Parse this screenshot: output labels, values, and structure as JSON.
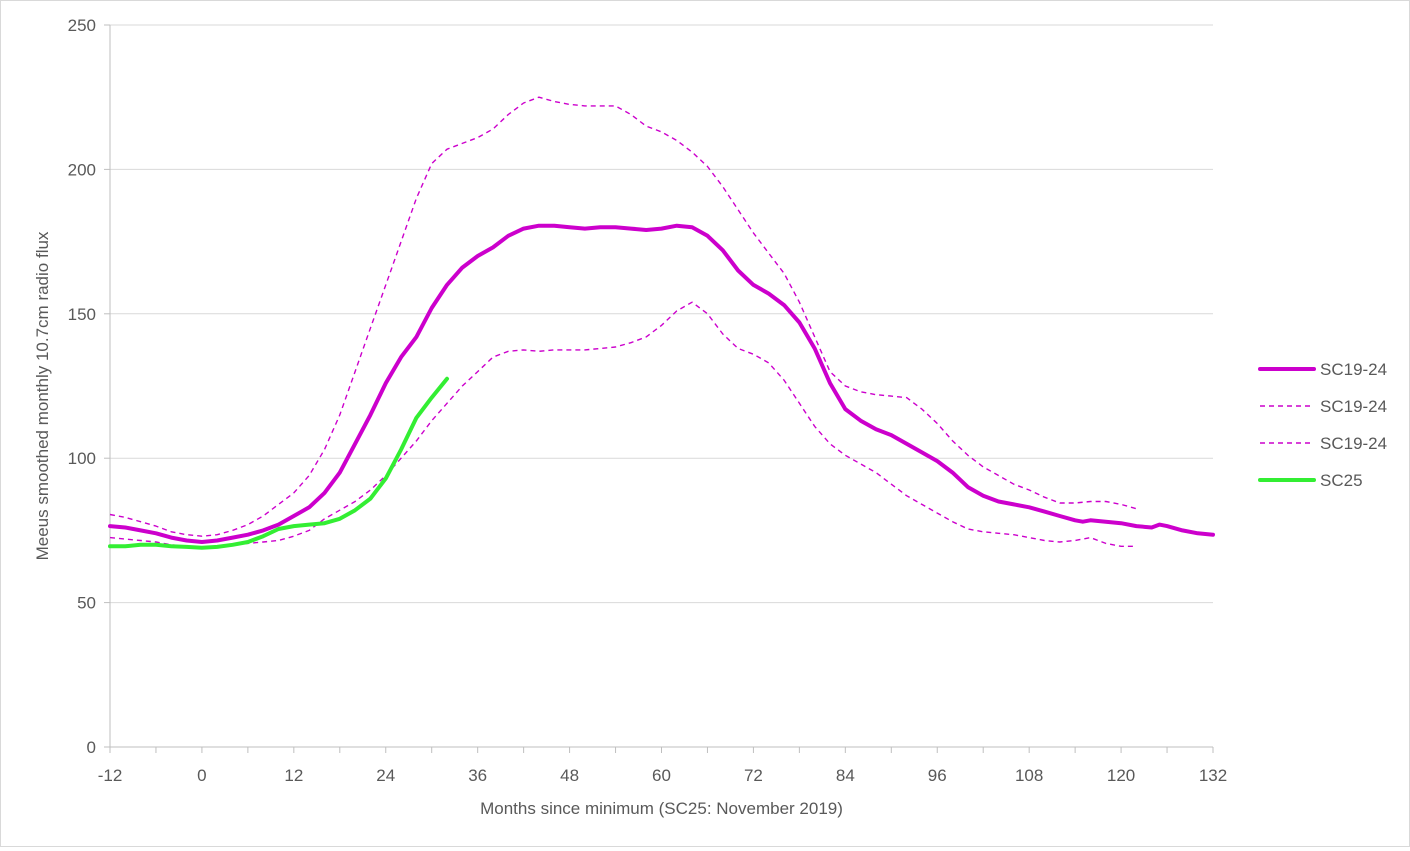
{
  "chart_data": {
    "type": "line",
    "title": "",
    "xlabel": "Months since minimum (SC25: November 2019)",
    "ylabel": "Meeus smoothed monthly 10.7cm radio flux",
    "xlim": [
      -12,
      132
    ],
    "ylim": [
      0,
      250
    ],
    "x_ticks": [
      -12,
      0,
      12,
      24,
      36,
      48,
      60,
      72,
      84,
      96,
      108,
      120,
      132
    ],
    "y_ticks": [
      0,
      50,
      100,
      150,
      200,
      250
    ],
    "grid": "horizontal",
    "legend_position": "right",
    "series": [
      {
        "name": "SC19-24",
        "style": "solid-thick",
        "color": "#cc00cc",
        "points": [
          [
            -12,
            76.5
          ],
          [
            -10,
            76
          ],
          [
            -8,
            75
          ],
          [
            -6,
            74
          ],
          [
            -4,
            72.5
          ],
          [
            -2,
            71.5
          ],
          [
            0,
            71
          ],
          [
            2,
            71.5
          ],
          [
            4,
            72.5
          ],
          [
            6,
            73.5
          ],
          [
            8,
            75
          ],
          [
            10,
            77
          ],
          [
            12,
            80
          ],
          [
            14,
            83
          ],
          [
            16,
            88
          ],
          [
            18,
            95
          ],
          [
            20,
            105
          ],
          [
            22,
            115
          ],
          [
            24,
            126
          ],
          [
            26,
            135
          ],
          [
            28,
            142
          ],
          [
            30,
            152
          ],
          [
            32,
            160
          ],
          [
            34,
            166
          ],
          [
            36,
            170
          ],
          [
            38,
            173
          ],
          [
            40,
            177
          ],
          [
            42,
            179.5
          ],
          [
            44,
            180.5
          ],
          [
            46,
            180.5
          ],
          [
            48,
            180
          ],
          [
            50,
            179.5
          ],
          [
            52,
            180
          ],
          [
            54,
            180
          ],
          [
            56,
            179.5
          ],
          [
            58,
            179
          ],
          [
            60,
            179.5
          ],
          [
            62,
            180.5
          ],
          [
            64,
            180
          ],
          [
            66,
            177
          ],
          [
            68,
            172
          ],
          [
            70,
            165
          ],
          [
            72,
            160
          ],
          [
            74,
            157
          ],
          [
            76,
            153
          ],
          [
            78,
            147
          ],
          [
            80,
            138
          ],
          [
            82,
            126
          ],
          [
            84,
            117
          ],
          [
            86,
            113
          ],
          [
            88,
            110
          ],
          [
            90,
            108
          ],
          [
            92,
            105
          ],
          [
            94,
            102
          ],
          [
            96,
            99
          ],
          [
            98,
            95
          ],
          [
            100,
            90
          ],
          [
            102,
            87
          ],
          [
            104,
            85
          ],
          [
            106,
            84
          ],
          [
            108,
            83
          ],
          [
            110,
            81.5
          ],
          [
            112,
            80
          ],
          [
            114,
            78.5
          ],
          [
            115,
            78
          ],
          [
            116,
            78.5
          ],
          [
            118,
            78
          ],
          [
            120,
            77.5
          ],
          [
            122,
            76.5
          ],
          [
            124,
            76
          ],
          [
            125,
            77
          ],
          [
            126,
            76.5
          ],
          [
            128,
            75
          ],
          [
            130,
            74
          ],
          [
            132,
            73.5
          ]
        ]
      },
      {
        "name": "SC19-24",
        "style": "dashed",
        "color": "#cc00cc",
        "points": [
          [
            -12,
            80.5
          ],
          [
            -10,
            79.5
          ],
          [
            -8,
            78
          ],
          [
            -6,
            76.5
          ],
          [
            -4,
            74.5
          ],
          [
            -2,
            73.5
          ],
          [
            0,
            73
          ],
          [
            2,
            73.5
          ],
          [
            4,
            75
          ],
          [
            6,
            77
          ],
          [
            8,
            80
          ],
          [
            10,
            84
          ],
          [
            12,
            88
          ],
          [
            14,
            94
          ],
          [
            16,
            103
          ],
          [
            18,
            115
          ],
          [
            20,
            130
          ],
          [
            22,
            145
          ],
          [
            24,
            160
          ],
          [
            26,
            175
          ],
          [
            28,
            190
          ],
          [
            30,
            202
          ],
          [
            32,
            207
          ],
          [
            34,
            209
          ],
          [
            36,
            211
          ],
          [
            38,
            214
          ],
          [
            40,
            219
          ],
          [
            42,
            223
          ],
          [
            44,
            225
          ],
          [
            46,
            223.5
          ],
          [
            48,
            222.5
          ],
          [
            50,
            222
          ],
          [
            52,
            222
          ],
          [
            54,
            222
          ],
          [
            56,
            219
          ],
          [
            58,
            215
          ],
          [
            60,
            213
          ],
          [
            62,
            210
          ],
          [
            64,
            206
          ],
          [
            66,
            201
          ],
          [
            68,
            194
          ],
          [
            70,
            186
          ],
          [
            72,
            178
          ],
          [
            74,
            171
          ],
          [
            76,
            164
          ],
          [
            78,
            154
          ],
          [
            80,
            142
          ],
          [
            82,
            130
          ],
          [
            84,
            125
          ],
          [
            86,
            123
          ],
          [
            88,
            122
          ],
          [
            90,
            121.5
          ],
          [
            92,
            121
          ],
          [
            94,
            117
          ],
          [
            96,
            112
          ],
          [
            98,
            106
          ],
          [
            100,
            101
          ],
          [
            102,
            97
          ],
          [
            104,
            94
          ],
          [
            106,
            91
          ],
          [
            108,
            89
          ],
          [
            110,
            86.5
          ],
          [
            112,
            84.5
          ],
          [
            114,
            84.5
          ],
          [
            116,
            85
          ],
          [
            118,
            85
          ],
          [
            120,
            84
          ],
          [
            122,
            82.5
          ]
        ]
      },
      {
        "name": "SC19-24",
        "style": "dashed",
        "color": "#cc00cc",
        "points": [
          [
            -12,
            72.5
          ],
          [
            -10,
            72
          ],
          [
            -8,
            71.5
          ],
          [
            -6,
            71
          ],
          [
            -4,
            70
          ],
          [
            -2,
            69.5
          ],
          [
            0,
            69
          ],
          [
            2,
            69.5
          ],
          [
            4,
            70
          ],
          [
            6,
            70.5
          ],
          [
            8,
            71
          ],
          [
            10,
            71.5
          ],
          [
            12,
            73
          ],
          [
            14,
            75
          ],
          [
            16,
            79
          ],
          [
            18,
            82
          ],
          [
            20,
            85
          ],
          [
            22,
            89
          ],
          [
            24,
            94
          ],
          [
            26,
            100
          ],
          [
            28,
            106
          ],
          [
            30,
            113
          ],
          [
            32,
            119
          ],
          [
            34,
            125
          ],
          [
            36,
            130
          ],
          [
            38,
            135
          ],
          [
            40,
            137
          ],
          [
            42,
            137.5
          ],
          [
            44,
            137
          ],
          [
            46,
            137.5
          ],
          [
            48,
            137.5
          ],
          [
            50,
            137.5
          ],
          [
            52,
            138
          ],
          [
            54,
            138.5
          ],
          [
            56,
            140
          ],
          [
            58,
            142
          ],
          [
            60,
            146
          ],
          [
            62,
            151
          ],
          [
            64,
            154
          ],
          [
            66,
            150
          ],
          [
            68,
            143
          ],
          [
            70,
            138
          ],
          [
            72,
            136
          ],
          [
            74,
            133
          ],
          [
            76,
            127
          ],
          [
            78,
            119
          ],
          [
            80,
            111
          ],
          [
            82,
            105
          ],
          [
            84,
            101
          ],
          [
            86,
            98
          ],
          [
            88,
            95
          ],
          [
            90,
            91
          ],
          [
            92,
            87
          ],
          [
            94,
            84
          ],
          [
            96,
            81
          ],
          [
            98,
            78
          ],
          [
            100,
            75.5
          ],
          [
            102,
            74.5
          ],
          [
            104,
            74
          ],
          [
            106,
            73.5
          ],
          [
            108,
            72.5
          ],
          [
            110,
            71.5
          ],
          [
            112,
            71
          ],
          [
            114,
            71.5
          ],
          [
            116,
            72.5
          ],
          [
            118,
            70.5
          ],
          [
            120,
            69.5
          ],
          [
            122,
            69.5
          ]
        ]
      },
      {
        "name": "SC25",
        "style": "solid-thick",
        "color": "#33ee33",
        "points": [
          [
            -12,
            69.5
          ],
          [
            -10,
            69.5
          ],
          [
            -8,
            70
          ],
          [
            -6,
            70
          ],
          [
            -4,
            69.5
          ],
          [
            -2,
            69.3
          ],
          [
            0,
            69
          ],
          [
            2,
            69.3
          ],
          [
            4,
            70
          ],
          [
            6,
            71
          ],
          [
            8,
            73
          ],
          [
            10,
            75.5
          ],
          [
            12,
            76.5
          ],
          [
            14,
            77
          ],
          [
            16,
            77.5
          ],
          [
            18,
            79
          ],
          [
            20,
            82
          ],
          [
            22,
            86
          ],
          [
            24,
            93
          ],
          [
            26,
            103
          ],
          [
            28,
            114
          ],
          [
            30,
            121
          ],
          [
            32,
            127.5
          ]
        ]
      }
    ]
  }
}
